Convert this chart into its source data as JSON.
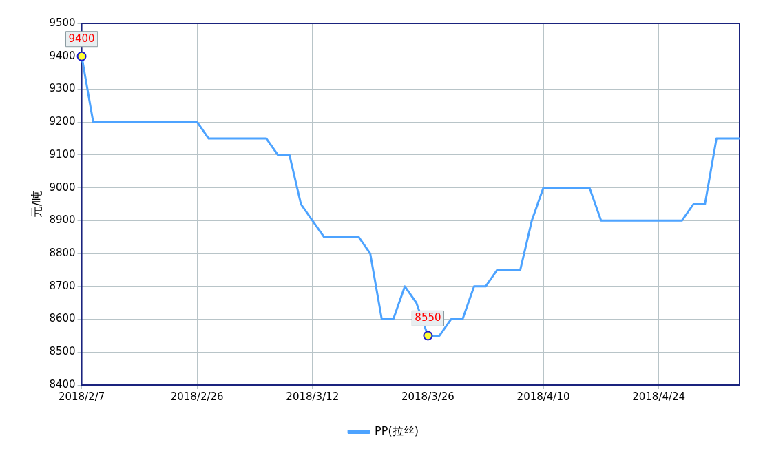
{
  "chart_data": {
    "type": "line",
    "ylabel": "元/吨",
    "categories": [
      "2018/2/7",
      null,
      null,
      null,
      null,
      null,
      null,
      null,
      null,
      null,
      "2018/2/26",
      null,
      null,
      null,
      null,
      null,
      null,
      null,
      null,
      null,
      "2018/3/12",
      null,
      null,
      null,
      null,
      null,
      null,
      null,
      null,
      null,
      "2018/3/26",
      null,
      null,
      null,
      null,
      null,
      null,
      null,
      null,
      null,
      "2018/4/10",
      null,
      null,
      null,
      null,
      null,
      null,
      null,
      null,
      null,
      "2018/4/24",
      null,
      null,
      null,
      null,
      null,
      null,
      null
    ],
    "series": [
      {
        "name": "PP(拉丝)",
        "color": "#4da3ff",
        "values": [
          9400,
          9200,
          9200,
          9200,
          9200,
          9200,
          9200,
          9200,
          9200,
          9200,
          9200,
          9150,
          9150,
          9150,
          9150,
          9150,
          9150,
          9100,
          9100,
          8950,
          8900,
          8850,
          8850,
          8850,
          8850,
          8800,
          8600,
          8600,
          8700,
          8650,
          8550,
          8550,
          8600,
          8600,
          8700,
          8700,
          8750,
          8750,
          8750,
          8900,
          9000,
          9000,
          9000,
          9000,
          9000,
          8900,
          8900,
          8900,
          8900,
          8900,
          8900,
          8900,
          8900,
          8950,
          8950,
          9150,
          9150,
          9150
        ],
        "value_labels": [
          "9400",
          null,
          null,
          null,
          null,
          null,
          null,
          null,
          null,
          null,
          null,
          null,
          null,
          null,
          null,
          null,
          null,
          null,
          null,
          null,
          null,
          null,
          null,
          null,
          null,
          null,
          null,
          null,
          null,
          null,
          "8550",
          null,
          null,
          null,
          null,
          null,
          null,
          null,
          null,
          null,
          null,
          null,
          null,
          null,
          null,
          null,
          null,
          null,
          null,
          null,
          null,
          null,
          null,
          null,
          null,
          null,
          null,
          null
        ]
      }
    ],
    "ylim": [
      8400,
      9500
    ],
    "yticks": [
      8400,
      8500,
      8600,
      8700,
      8800,
      8900,
      9000,
      9100,
      9200,
      9300,
      9400,
      9500
    ],
    "grid": true,
    "legend": "bottom"
  }
}
